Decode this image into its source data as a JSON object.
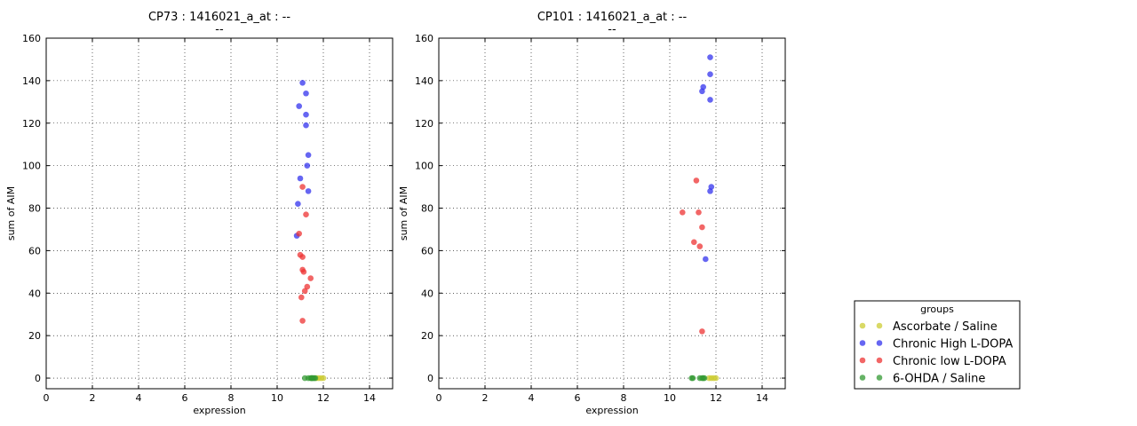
{
  "chart_data": [
    {
      "type": "scatter",
      "title": "CP73 : 1416021_a_at : --",
      "subtitle": "--",
      "xlabel": "expression",
      "ylabel": "sum of AIM",
      "xlim": [
        0,
        15
      ],
      "ylim": [
        -5,
        160
      ],
      "xticks": [
        "0",
        "2",
        "4",
        "6",
        "8",
        "10",
        "12",
        "14"
      ],
      "yticks": [
        "0",
        "20",
        "40",
        "60",
        "80",
        "100",
        "120",
        "140",
        "160"
      ],
      "grid": true,
      "series": [
        {
          "name": "Ascorbate / Saline",
          "color": "#cccc33",
          "points": [
            [
              11.9,
              0
            ],
            [
              12.0,
              0
            ],
            [
              11.8,
              0
            ],
            [
              11.7,
              0
            ]
          ]
        },
        {
          "name": "Chronic High L-DOPA",
          "color": "#3333ee",
          "points": [
            [
              11.1,
              139
            ],
            [
              11.25,
              134
            ],
            [
              10.95,
              128
            ],
            [
              11.25,
              124
            ],
            [
              11.25,
              119
            ],
            [
              11.35,
              105
            ],
            [
              11.3,
              100
            ],
            [
              11.0,
              94
            ],
            [
              11.35,
              88
            ],
            [
              10.9,
              82
            ],
            [
              10.85,
              67
            ]
          ]
        },
        {
          "name": "Chronic low L-DOPA",
          "color": "#ee3333",
          "points": [
            [
              11.1,
              90
            ],
            [
              11.25,
              77
            ],
            [
              10.95,
              68
            ],
            [
              11.0,
              58
            ],
            [
              11.1,
              57
            ],
            [
              11.1,
              51
            ],
            [
              11.15,
              50
            ],
            [
              11.45,
              47
            ],
            [
              11.3,
              43
            ],
            [
              11.2,
              41
            ],
            [
              11.05,
              38
            ],
            [
              11.1,
              27
            ]
          ]
        },
        {
          "name": "6-OHDA / Saline",
          "color": "#339933",
          "points": [
            [
              11.2,
              0
            ],
            [
              11.35,
              0
            ],
            [
              11.45,
              0
            ],
            [
              11.5,
              0
            ],
            [
              11.55,
              0
            ],
            [
              11.6,
              0
            ],
            [
              11.65,
              0
            ],
            [
              11.5,
              0
            ]
          ]
        }
      ]
    },
    {
      "type": "scatter",
      "title": "CP101 : 1416021_a_at : --",
      "subtitle": "--",
      "xlabel": "expression",
      "ylabel": "sum of AIM",
      "xlim": [
        0,
        15
      ],
      "ylim": [
        -5,
        160
      ],
      "xticks": [
        "0",
        "2",
        "4",
        "6",
        "8",
        "10",
        "12",
        "14"
      ],
      "yticks": [
        "0",
        "20",
        "40",
        "60",
        "80",
        "100",
        "120",
        "140",
        "160"
      ],
      "grid": true,
      "series": [
        {
          "name": "Ascorbate / Saline",
          "color": "#cccc33",
          "points": [
            [
              11.8,
              0
            ],
            [
              11.9,
              0
            ],
            [
              12.0,
              0
            ],
            [
              11.7,
              0
            ]
          ]
        },
        {
          "name": "Chronic High L-DOPA",
          "color": "#3333ee",
          "points": [
            [
              11.75,
              151
            ],
            [
              11.75,
              143
            ],
            [
              11.45,
              137
            ],
            [
              11.4,
              135
            ],
            [
              11.75,
              131
            ],
            [
              11.8,
              90
            ],
            [
              11.75,
              88
            ],
            [
              11.55,
              56
            ]
          ]
        },
        {
          "name": "Chronic low L-DOPA",
          "color": "#ee3333",
          "points": [
            [
              11.15,
              93
            ],
            [
              10.55,
              78
            ],
            [
              11.25,
              78
            ],
            [
              11.4,
              71
            ],
            [
              11.05,
              64
            ],
            [
              11.3,
              62
            ],
            [
              11.4,
              22
            ]
          ]
        },
        {
          "name": "6-OHDA / Saline",
          "color": "#339933",
          "points": [
            [
              10.95,
              0
            ],
            [
              11.0,
              0
            ],
            [
              11.3,
              0
            ],
            [
              11.4,
              0
            ],
            [
              11.5,
              0
            ],
            [
              11.45,
              0
            ]
          ]
        }
      ]
    }
  ],
  "legend": {
    "title": "groups",
    "placement": "lower-right",
    "entries": [
      {
        "label": "Ascorbate / Saline",
        "color": "#cccc33"
      },
      {
        "label": "Chronic High L-DOPA",
        "color": "#3333ee"
      },
      {
        "label": "Chronic low L-DOPA",
        "color": "#ee3333"
      },
      {
        "label": "6-OHDA / Saline",
        "color": "#339933"
      }
    ]
  }
}
